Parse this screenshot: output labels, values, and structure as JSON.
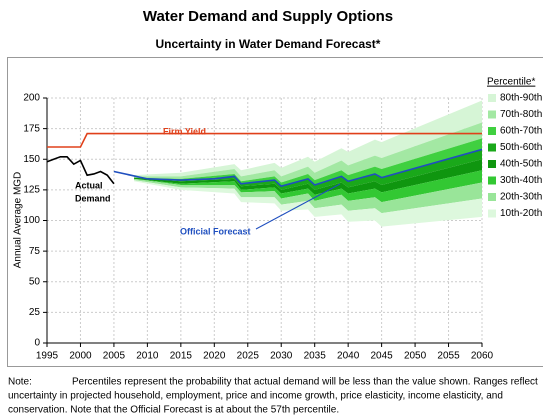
{
  "chart_data": {
    "type": "fan",
    "title": "Water Demand and Supply Options",
    "subtitle": "Uncertainty in Water Demand Forecast*",
    "ylabel": "Annual Average MGD",
    "xlim": [
      1995,
      2060
    ],
    "xticks": [
      1995,
      2000,
      2005,
      2010,
      2015,
      2020,
      2025,
      2030,
      2035,
      2040,
      2045,
      2050,
      2055,
      2060
    ],
    "ylim": [
      0,
      200
    ],
    "yticks": [
      0,
      25,
      50,
      75,
      100,
      125,
      150,
      175,
      200
    ],
    "grid": true,
    "legend": "right",
    "legend_title": "Percentile*",
    "band_x": [
      2008,
      2015,
      2023,
      2024,
      2029,
      2030,
      2034,
      2035,
      2039,
      2040,
      2044,
      2045,
      2060
    ],
    "series": [
      {
        "name": "80th-90th",
        "color": "#d6f5d6",
        "lower": [
          136,
          136,
          142,
          136,
          141,
          136,
          144,
          139,
          149,
          145,
          153,
          151,
          180
        ],
        "upper": [
          137,
          139,
          146,
          141,
          147,
          143,
          152,
          148,
          159,
          156,
          166,
          164,
          198
        ]
      },
      {
        "name": "70th-80th",
        "color": "#a3e8a3",
        "lower": [
          135,
          134,
          138,
          132,
          136,
          131,
          138,
          133,
          141,
          137,
          144,
          142,
          167
        ],
        "upper": [
          136,
          136,
          142,
          136,
          141,
          136,
          144,
          139,
          149,
          145,
          153,
          151,
          180
        ]
      },
      {
        "name": "60th-70th",
        "color": "#40d040",
        "lower": [
          135,
          133,
          136,
          130,
          133,
          128,
          134,
          129,
          136,
          132,
          138,
          135,
          158
        ],
        "upper": [
          135,
          134,
          138,
          132,
          136,
          131,
          138,
          133,
          141,
          137,
          144,
          142,
          167
        ]
      },
      {
        "name": "50th-60th",
        "color": "#1aa81a",
        "lower": [
          135,
          132,
          134,
          128,
          130,
          125,
          130,
          125,
          131,
          127,
          132,
          129,
          150
        ],
        "upper": [
          135,
          133,
          136,
          130,
          133,
          128,
          134,
          129,
          136,
          132,
          138,
          135,
          158
        ]
      },
      {
        "name": "40th-50th",
        "color": "#0f960f",
        "lower": [
          134,
          130,
          132,
          125,
          127,
          122,
          126,
          121,
          126,
          122,
          126,
          123,
          141
        ],
        "upper": [
          135,
          132,
          134,
          128,
          130,
          125,
          130,
          125,
          131,
          127,
          132,
          129,
          150
        ]
      },
      {
        "name": "30th-40th",
        "color": "#33c833",
        "lower": [
          134,
          129,
          129,
          123,
          124,
          118,
          122,
          116,
          121,
          116,
          119,
          115,
          131
        ],
        "upper": [
          134,
          130,
          132,
          125,
          127,
          122,
          126,
          121,
          126,
          122,
          126,
          123,
          141
        ]
      },
      {
        "name": "20th-30th",
        "color": "#99e599",
        "lower": [
          133,
          127,
          126,
          119,
          119,
          113,
          116,
          110,
          113,
          108,
          110,
          106,
          118
        ],
        "upper": [
          134,
          129,
          129,
          123,
          124,
          118,
          122,
          116,
          121,
          116,
          119,
          115,
          131
        ]
      },
      {
        "name": "10th-20th",
        "color": "#ddf8dd",
        "lower": [
          132,
          125,
          122,
          115,
          114,
          108,
          109,
          103,
          105,
          99,
          100,
          95,
          103
        ],
        "upper": [
          133,
          127,
          126,
          119,
          119,
          113,
          116,
          110,
          113,
          108,
          110,
          106,
          118
        ]
      }
    ],
    "lines": [
      {
        "label": "Firm Yield",
        "color": "#e0401a",
        "x": [
          1995,
          2000,
          2001,
          2060
        ],
        "values": [
          160,
          160,
          171,
          171
        ]
      },
      {
        "label_lines": [
          "Actual",
          "Demand"
        ],
        "color": "#000000",
        "x": [
          1995,
          1996,
          1997,
          1998,
          1999,
          2000,
          2001,
          2002,
          2003,
          2004,
          2005
        ],
        "values": [
          148,
          150,
          152,
          152,
          146,
          149,
          137,
          138,
          140,
          137,
          130
        ]
      },
      {
        "label": "Official Forecast",
        "color": "#1f4fbf",
        "x": [
          2005,
          2010,
          2015,
          2020,
          2023,
          2024,
          2029,
          2030,
          2034,
          2035,
          2039,
          2040,
          2044,
          2045,
          2060
        ],
        "values": [
          140,
          134,
          133,
          134,
          136,
          130,
          133,
          128,
          134,
          129,
          136,
          132,
          138,
          135,
          158
        ]
      }
    ],
    "note_label": "Note:",
    "note_lines": [
      "Percentiles represent the probability that actual demand will be less than the value shown.  Ranges reflect",
      "uncertainty in projected household, employment, price and income growth, price elasticity, income elasticity, and",
      "conservation.  Note that the Official Forecast is at about the 57th percentile."
    ]
  }
}
